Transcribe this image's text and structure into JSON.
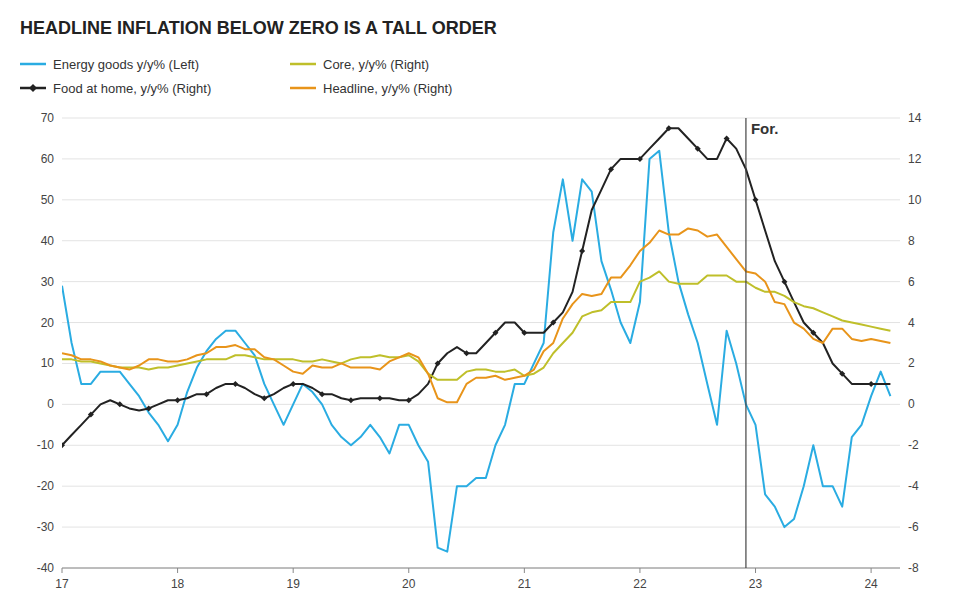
{
  "chart_data": {
    "type": "line",
    "title": "HEADLINE INFLATION BELOW ZERO IS A TALL ORDER",
    "x": [
      2017.0,
      2017.083,
      2017.167,
      2017.25,
      2017.333,
      2017.417,
      2017.5,
      2017.583,
      2017.667,
      2017.75,
      2017.833,
      2017.917,
      2018.0,
      2018.083,
      2018.167,
      2018.25,
      2018.333,
      2018.417,
      2018.5,
      2018.583,
      2018.667,
      2018.75,
      2018.833,
      2018.917,
      2019.0,
      2019.083,
      2019.167,
      2019.25,
      2019.333,
      2019.417,
      2019.5,
      2019.583,
      2019.667,
      2019.75,
      2019.833,
      2019.917,
      2020.0,
      2020.083,
      2020.167,
      2020.25,
      2020.333,
      2020.417,
      2020.5,
      2020.583,
      2020.667,
      2020.75,
      2020.833,
      2020.917,
      2021.0,
      2021.083,
      2021.167,
      2021.25,
      2021.333,
      2021.417,
      2021.5,
      2021.583,
      2021.667,
      2021.75,
      2021.833,
      2021.917,
      2022.0,
      2022.083,
      2022.167,
      2022.25,
      2022.333,
      2022.417,
      2022.5,
      2022.583,
      2022.667,
      2022.75,
      2022.833,
      2022.917,
      2023.0,
      2023.083,
      2023.167,
      2023.25,
      2023.333,
      2023.417,
      2023.5,
      2023.583,
      2023.667,
      2023.75,
      2023.833,
      2023.917,
      2024.0,
      2024.083,
      2024.167
    ],
    "series": [
      {
        "name": "Energy goods y/y% (Left)",
        "color": "#2AACE2",
        "values": [
          29,
          15,
          5,
          5,
          8,
          8,
          8,
          5,
          2,
          -2,
          -5,
          -9,
          -5,
          3,
          9,
          13,
          16,
          18,
          18,
          15,
          12,
          5,
          0,
          -5,
          0,
          5,
          3,
          0,
          -5,
          -8,
          -10,
          -8,
          -5,
          -8,
          -12,
          -5,
          -5,
          -10,
          -14,
          -35,
          -36,
          -20,
          -20,
          -18,
          -18,
          -10,
          -5,
          5,
          5,
          10,
          15,
          42,
          55,
          40,
          55,
          52,
          35,
          28,
          20,
          15,
          25,
          60,
          62,
          42,
          30,
          22,
          15,
          5,
          -5,
          18,
          10,
          0,
          -5,
          -22,
          -25,
          -30,
          -28,
          -20,
          -10,
          -20,
          -20,
          -25,
          -8,
          -5,
          2,
          8,
          2
        ]
      },
      {
        "name": "Food at home, y/y% (Right)",
        "color": "#222222",
        "axis": "y2",
        "marker": "diamond",
        "values": [
          -2,
          -1.5,
          -1,
          -0.5,
          0,
          0.2,
          0,
          -0.2,
          -0.3,
          -0.2,
          0,
          0.2,
          0.2,
          0.3,
          0.5,
          0.5,
          0.8,
          1.0,
          1.0,
          0.8,
          0.5,
          0.3,
          0.5,
          0.8,
          1.0,
          1.0,
          0.8,
          0.5,
          0.5,
          0.3,
          0.2,
          0.3,
          0.3,
          0.3,
          0.3,
          0.2,
          0.2,
          0.5,
          1.0,
          2.0,
          2.5,
          2.8,
          2.5,
          2.5,
          3.0,
          3.5,
          4.0,
          4.0,
          3.5,
          3.5,
          3.5,
          4.0,
          4.5,
          5.5,
          7.5,
          9.5,
          10.5,
          11.5,
          12.0,
          12.0,
          12.0,
          12.5,
          13.0,
          13.5,
          13.5,
          13.0,
          12.5,
          12.0,
          12.0,
          13.0,
          12.5,
          11.5,
          10.0,
          8.5,
          7.0,
          6.0,
          5.0,
          4.0,
          3.5,
          3.0,
          2.0,
          1.5,
          1.0,
          1.0,
          1.0,
          1.0,
          1.0
        ]
      },
      {
        "name": "Core, y/y% (Right)",
        "color": "#BFBF2A",
        "axis": "y2",
        "values": [
          2.2,
          2.2,
          2.1,
          2.1,
          2.0,
          1.9,
          1.8,
          1.8,
          1.8,
          1.7,
          1.8,
          1.8,
          1.9,
          2.0,
          2.1,
          2.2,
          2.2,
          2.2,
          2.4,
          2.4,
          2.3,
          2.2,
          2.2,
          2.2,
          2.2,
          2.1,
          2.1,
          2.2,
          2.1,
          2.0,
          2.2,
          2.3,
          2.3,
          2.4,
          2.3,
          2.3,
          2.4,
          2.1,
          1.5,
          1.2,
          1.2,
          1.2,
          1.6,
          1.7,
          1.7,
          1.6,
          1.6,
          1.7,
          1.4,
          1.5,
          1.8,
          2.5,
          3.0,
          3.5,
          4.3,
          4.5,
          4.6,
          5.0,
          5.0,
          5.0,
          6.0,
          6.2,
          6.5,
          6.0,
          5.9,
          5.9,
          5.9,
          6.3,
          6.3,
          6.3,
          6.0,
          6.0,
          5.7,
          5.5,
          5.5,
          5.3,
          5.0,
          4.8,
          4.7,
          4.5,
          4.3,
          4.1,
          4.0,
          3.9,
          3.8,
          3.7,
          3.6
        ]
      },
      {
        "name": "Headline, y/y% (Right)",
        "color": "#E8941A",
        "axis": "y2",
        "values": [
          2.5,
          2.4,
          2.2,
          2.2,
          2.1,
          1.9,
          1.8,
          1.7,
          1.9,
          2.2,
          2.2,
          2.1,
          2.1,
          2.2,
          2.4,
          2.5,
          2.8,
          2.8,
          2.9,
          2.7,
          2.7,
          2.3,
          2.2,
          1.9,
          1.6,
          1.5,
          1.9,
          1.8,
          1.8,
          2.0,
          1.8,
          1.8,
          1.8,
          1.7,
          2.1,
          2.3,
          2.5,
          2.3,
          1.5,
          0.3,
          0.1,
          0.1,
          1.0,
          1.3,
          1.3,
          1.4,
          1.2,
          1.3,
          1.4,
          1.7,
          2.6,
          3.0,
          4.2,
          4.9,
          5.4,
          5.3,
          5.4,
          6.2,
          6.2,
          6.8,
          7.5,
          7.9,
          8.5,
          8.3,
          8.3,
          8.6,
          8.5,
          8.2,
          8.3,
          7.7,
          7.1,
          6.5,
          6.4,
          6.0,
          5.0,
          4.9,
          4.0,
          3.7,
          3.2,
          3.0,
          3.7,
          3.7,
          3.2,
          3.1,
          3.2,
          3.1,
          3.0
        ]
      }
    ],
    "xlim": [
      2017.0,
      2024.25
    ],
    "xticks": [
      {
        "value": 2017,
        "label": "17"
      },
      {
        "value": 2018,
        "label": "18"
      },
      {
        "value": 2019,
        "label": "19"
      },
      {
        "value": 2020,
        "label": "20"
      },
      {
        "value": 2021,
        "label": "21"
      },
      {
        "value": 2022,
        "label": "22"
      },
      {
        "value": 2023,
        "label": "23"
      },
      {
        "value": 2024,
        "label": "24"
      }
    ],
    "ylim": [
      -40,
      70
    ],
    "yticks": [
      -40,
      -30,
      -20,
      -10,
      0,
      10,
      20,
      30,
      40,
      50,
      60,
      70
    ],
    "y2lim": [
      -8,
      14
    ],
    "y2ticks": [
      -8,
      -6,
      -4,
      -2,
      0,
      2,
      4,
      6,
      8,
      10,
      12,
      14
    ],
    "annotations": [
      {
        "text": "For.",
        "x": 2022.917
      }
    ],
    "grid": true,
    "legend": "top-left"
  }
}
